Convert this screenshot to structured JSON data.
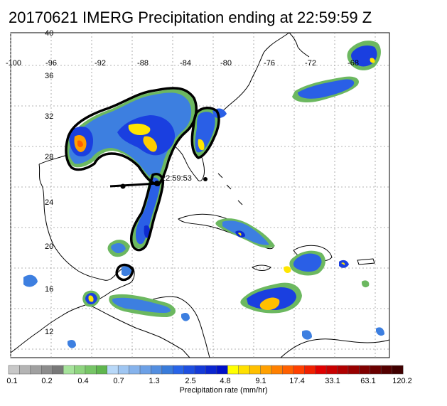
{
  "title": "20170621 IMERG Precipitation ending at 22:59:59 Z",
  "map": {
    "region": "Gulf of Mexico / Caribbean",
    "lon_labels": [
      "-100",
      "-96",
      "-92",
      "-88",
      "-84",
      "-80",
      "-76",
      "-72",
      "-68"
    ],
    "lat_labels": [
      "40",
      "36",
      "32",
      "28",
      "24",
      "20",
      "16",
      "12"
    ],
    "storm_marker_time": "22:59:53",
    "grid": "dotted",
    "colors": {
      "land_outline": "#000000",
      "grid": "#888888",
      "contour_black": "#000000"
    }
  },
  "colorbar": {
    "title": "Precipitation rate (mm/hr)",
    "tick_labels": [
      "0.1",
      "0.2",
      "0.4",
      "0.7",
      "1.3",
      "2.5",
      "4.8",
      "9.1",
      "17.4",
      "33.1",
      "63.1",
      "120.2"
    ],
    "colors": [
      "#c8c8c8",
      "#b4b4b4",
      "#a0a0a0",
      "#8c8c8c",
      "#787878",
      "#a6e39b",
      "#8ed47f",
      "#76c566",
      "#5fb64e",
      "#b8d8f8",
      "#9fc6f2",
      "#86b3ec",
      "#6ca0e6",
      "#538ee0",
      "#397bda",
      "#2864e8",
      "#1e4fe0",
      "#143ad8",
      "#0a25d0",
      "#0010c8",
      "#ffff00",
      "#ffe000",
      "#ffc000",
      "#ffa000",
      "#ff8000",
      "#ff6000",
      "#ff4000",
      "#f02000",
      "#e00000",
      "#c80000",
      "#b00000",
      "#980000",
      "#800000",
      "#6a0000",
      "#540000",
      "#400000"
    ]
  }
}
